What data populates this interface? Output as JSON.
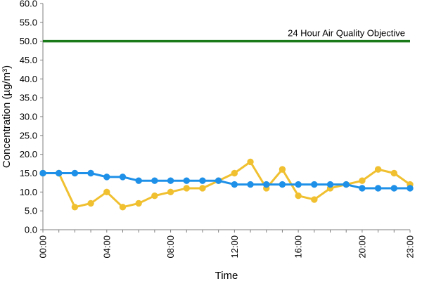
{
  "chart_data": {
    "type": "line",
    "title": "",
    "xlabel": "Time",
    "ylabel": "Concentration (µg/m³)",
    "ylim": [
      0,
      60
    ],
    "y_ticks": [
      "0.0",
      "5.0",
      "10.0",
      "15.0",
      "20.0",
      "25.0",
      "30.0",
      "35.0",
      "40.0",
      "45.0",
      "50.0",
      "55.0",
      "60.0"
    ],
    "x": [
      "00:00",
      "01:00",
      "02:00",
      "03:00",
      "04:00",
      "05:00",
      "06:00",
      "07:00",
      "08:00",
      "09:00",
      "10:00",
      "11:00",
      "12:00",
      "13:00",
      "14:00",
      "15:00",
      "16:00",
      "17:00",
      "18:00",
      "19:00",
      "20:00",
      "21:00",
      "22:00",
      "23:00"
    ],
    "x_tick_labels": [
      "00:00",
      "04:00",
      "08:00",
      "12:00",
      "16:00",
      "20:00",
      "23:00"
    ],
    "grid": false,
    "legend": "none",
    "series": [
      {
        "color": "#f0c030",
        "values": [
          15,
          15,
          6,
          7,
          10,
          6,
          7,
          9,
          10,
          11,
          11,
          13,
          15,
          18,
          11,
          16,
          9,
          8,
          11,
          12,
          13,
          16,
          15,
          12
        ]
      },
      {
        "color": "#1e90e8",
        "values": [
          15,
          15,
          15,
          15,
          14,
          14,
          13,
          13,
          13,
          13,
          13,
          13,
          12,
          12,
          12,
          12,
          12,
          12,
          12,
          12,
          11,
          11,
          11,
          11
        ]
      }
    ],
    "reference_line": {
      "value": 50,
      "label": "24 Hour Air Quality Objective",
      "color": "#1a7a1a"
    }
  }
}
